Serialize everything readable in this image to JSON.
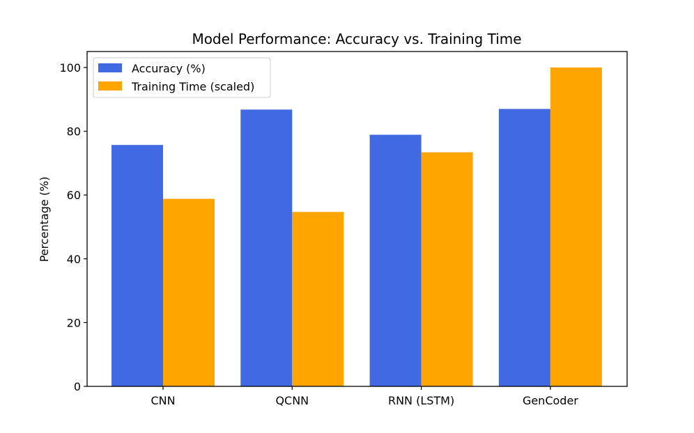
{
  "chart_data": {
    "type": "bar",
    "title": "Model Performance: Accuracy vs. Training Time",
    "xlabel": "",
    "ylabel": "Percentage (%)",
    "categories": [
      "CNN",
      "QCNN",
      "RNN (LSTM)",
      "GenCoder"
    ],
    "series": [
      {
        "name": "Accuracy (%)",
        "values": [
          75.7,
          86.8,
          78.9,
          87.0
        ],
        "color": "#4169e1"
      },
      {
        "name": "Training Time (scaled)",
        "values": [
          58.8,
          54.7,
          73.4,
          100.0
        ],
        "color": "#ffa500"
      }
    ],
    "ylim": [
      0,
      105
    ],
    "yticks": [
      0,
      20,
      40,
      60,
      80,
      100
    ],
    "grid": false,
    "legend": "top-left"
  }
}
